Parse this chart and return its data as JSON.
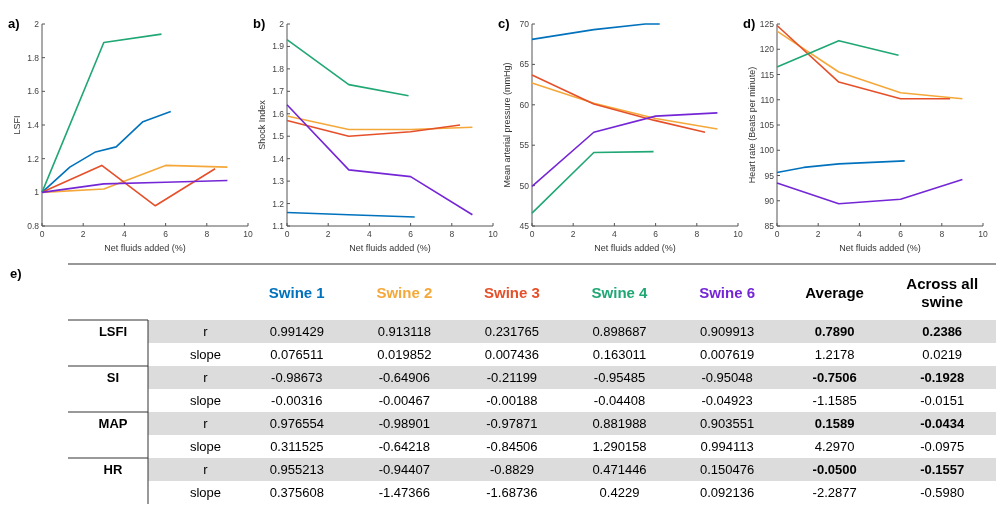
{
  "chart_data": [
    {
      "type": "line",
      "title": "a)",
      "xlabel": "Net fluids added (%)",
      "ylabel": "LSFI",
      "xlim": [
        0,
        10
      ],
      "xticks": [
        0,
        2,
        4,
        6,
        8,
        10
      ],
      "ylim": [
        0.8,
        2
      ],
      "yticks": [
        0.8,
        1,
        1.2,
        1.4,
        1.6,
        1.8,
        2
      ],
      "series": [
        {
          "color": "#0072bd",
          "x": [
            0,
            1.35,
            2.6,
            3.6,
            4.9,
            6.25
          ],
          "values": [
            1,
            1.15,
            1.24,
            1.27,
            1.42,
            1.48
          ]
        },
        {
          "color": "#f5a83a",
          "x": [
            0,
            3,
            6,
            9
          ],
          "values": [
            1,
            1.02,
            1.16,
            1.15
          ]
        },
        {
          "color": "#e5502a",
          "x": [
            0,
            2.9,
            5.5,
            8.4
          ],
          "values": [
            1,
            1.16,
            0.92,
            1.14
          ]
        },
        {
          "color": "#1fa774",
          "x": [
            0,
            3,
            5.8
          ],
          "values": [
            1,
            1.89,
            1.94
          ]
        },
        {
          "color": "#7426d6",
          "x": [
            0,
            3,
            6,
            9
          ],
          "values": [
            1,
            1.05,
            1.06,
            1.07
          ]
        }
      ]
    },
    {
      "type": "line",
      "title": "b)",
      "xlabel": "Net fluids added (%)",
      "ylabel": "Shock Index",
      "xlim": [
        0,
        10
      ],
      "xticks": [
        0,
        2,
        4,
        6,
        8,
        10
      ],
      "ylim": [
        1.1,
        2
      ],
      "yticks": [
        1.1,
        1.2,
        1.3,
        1.4,
        1.5,
        1.6,
        1.7,
        1.8,
        1.9,
        2
      ],
      "series": [
        {
          "color": "#0072bd",
          "x": [
            0,
            3,
            6.2
          ],
          "values": [
            1.16,
            1.15,
            1.14
          ]
        },
        {
          "color": "#f5a83a",
          "x": [
            0,
            3,
            6,
            9
          ],
          "values": [
            1.59,
            1.53,
            1.53,
            1.54
          ]
        },
        {
          "color": "#e5502a",
          "x": [
            0,
            3,
            6,
            8.4
          ],
          "values": [
            1.57,
            1.5,
            1.52,
            1.55
          ]
        },
        {
          "color": "#1fa774",
          "x": [
            0,
            3,
            5.9
          ],
          "values": [
            1.93,
            1.73,
            1.68
          ]
        },
        {
          "color": "#7426d6",
          "x": [
            0,
            3,
            6,
            9
          ],
          "values": [
            1.64,
            1.35,
            1.32,
            1.15
          ]
        }
      ]
    },
    {
      "type": "line",
      "title": "c)",
      "xlabel": "Net fluids added (%)",
      "ylabel": "Mean arterial pressure (mmHg)",
      "xlim": [
        0,
        10
      ],
      "xticks": [
        0,
        2,
        4,
        6,
        8,
        10
      ],
      "ylim": [
        45,
        70
      ],
      "yticks": [
        45,
        50,
        55,
        60,
        65,
        70
      ],
      "series": [
        {
          "color": "#0072bd",
          "x": [
            0,
            3,
            5.5,
            6.2
          ],
          "values": [
            68.1,
            69.3,
            70,
            70
          ]
        },
        {
          "color": "#f5a83a",
          "x": [
            0,
            3,
            6,
            9
          ],
          "values": [
            62.7,
            60.2,
            58.3,
            57
          ]
        },
        {
          "color": "#e5502a",
          "x": [
            0,
            3,
            5.9,
            8.4
          ],
          "values": [
            63.7,
            60.1,
            58.1,
            56.6
          ]
        },
        {
          "color": "#1fa774",
          "x": [
            0,
            3,
            5.9
          ],
          "values": [
            46.6,
            54.1,
            54.2
          ]
        },
        {
          "color": "#7426d6",
          "x": [
            0,
            3,
            6,
            9
          ],
          "values": [
            49.9,
            56.6,
            58.6,
            59
          ]
        }
      ]
    },
    {
      "type": "line",
      "title": "d)",
      "xlabel": "Net fluids added (%)",
      "ylabel": "Heart rate (Beats per minute)",
      "xlim": [
        0,
        10
      ],
      "xticks": [
        0,
        2,
        4,
        6,
        8,
        10
      ],
      "ylim": [
        85,
        125
      ],
      "yticks": [
        85,
        90,
        95,
        100,
        105,
        110,
        115,
        120,
        125
      ],
      "series": [
        {
          "color": "#0072bd",
          "x": [
            0,
            1.3,
            3,
            6.2
          ],
          "values": [
            95.6,
            96.6,
            97.3,
            97.9
          ]
        },
        {
          "color": "#f5a83a",
          "x": [
            0,
            3,
            6,
            9
          ],
          "values": [
            123.6,
            115.5,
            111.4,
            110.2
          ]
        },
        {
          "color": "#e5502a",
          "x": [
            0,
            3,
            6,
            8.4
          ],
          "values": [
            124.7,
            113.5,
            110.2,
            110.2
          ]
        },
        {
          "color": "#1fa774",
          "x": [
            0,
            3,
            5.9
          ],
          "values": [
            116.5,
            121.7,
            118.8
          ]
        },
        {
          "color": "#7426d6",
          "x": [
            0,
            3,
            6,
            9
          ],
          "values": [
            93.5,
            89.4,
            90.3,
            94.2
          ]
        }
      ]
    },
    {
      "type": "other",
      "title": "e)",
      "categories": [
        "Swine 1",
        "Swine 2",
        "Swine 3",
        "Swine 4",
        "Swine 6",
        "Average",
        "Across all swine"
      ],
      "colors": [
        "#0072bd",
        "#f5a83a",
        "#e5502a",
        "#1fa774",
        "#7426d6",
        "#000000",
        "#000000"
      ],
      "y_categories": [
        "LSFI",
        null,
        "SI",
        null,
        "MAP",
        null,
        "HR",
        null
      ],
      "y2_categories": [
        "r",
        "slope",
        "r",
        "slope",
        "r",
        "slope",
        "r",
        "slope"
      ],
      "cell_labels": [
        [
          "0.991429",
          "0.913118",
          "0.231765",
          "0.898687",
          "0.909913",
          "0.7890",
          "0.2386"
        ],
        [
          "0.076511",
          "0.019852",
          "0.007436",
          "0.163011",
          "0.007619",
          "1.2178",
          "0.0219"
        ],
        [
          "-0.98673",
          "-0.64906",
          "-0.21199",
          "-0.95485",
          "-0.95048",
          "-0.7506",
          "-0.1928"
        ],
        [
          "-0.00316",
          "-0.00467",
          "-0.00188",
          "-0.04408",
          "-0.04923",
          "-1.1585",
          "-0.0151"
        ],
        [
          "0.976554",
          "-0.98901",
          "-0.97871",
          "0.881988",
          "0.903551",
          "0.1589",
          "-0.0434"
        ],
        [
          "0.311525",
          "-0.64218",
          "-0.84506",
          "1.290158",
          "0.994113",
          "4.2970",
          "-0.0975"
        ],
        [
          "0.955213",
          "-0.94407",
          "-0.8829",
          "0.471446",
          "0.150476",
          "-0.0500",
          "-0.1557"
        ],
        [
          "0.375608",
          "-1.47366",
          "-1.68736",
          "0.4229",
          "0.092136",
          "-2.2877",
          "-0.5980"
        ]
      ]
    }
  ]
}
